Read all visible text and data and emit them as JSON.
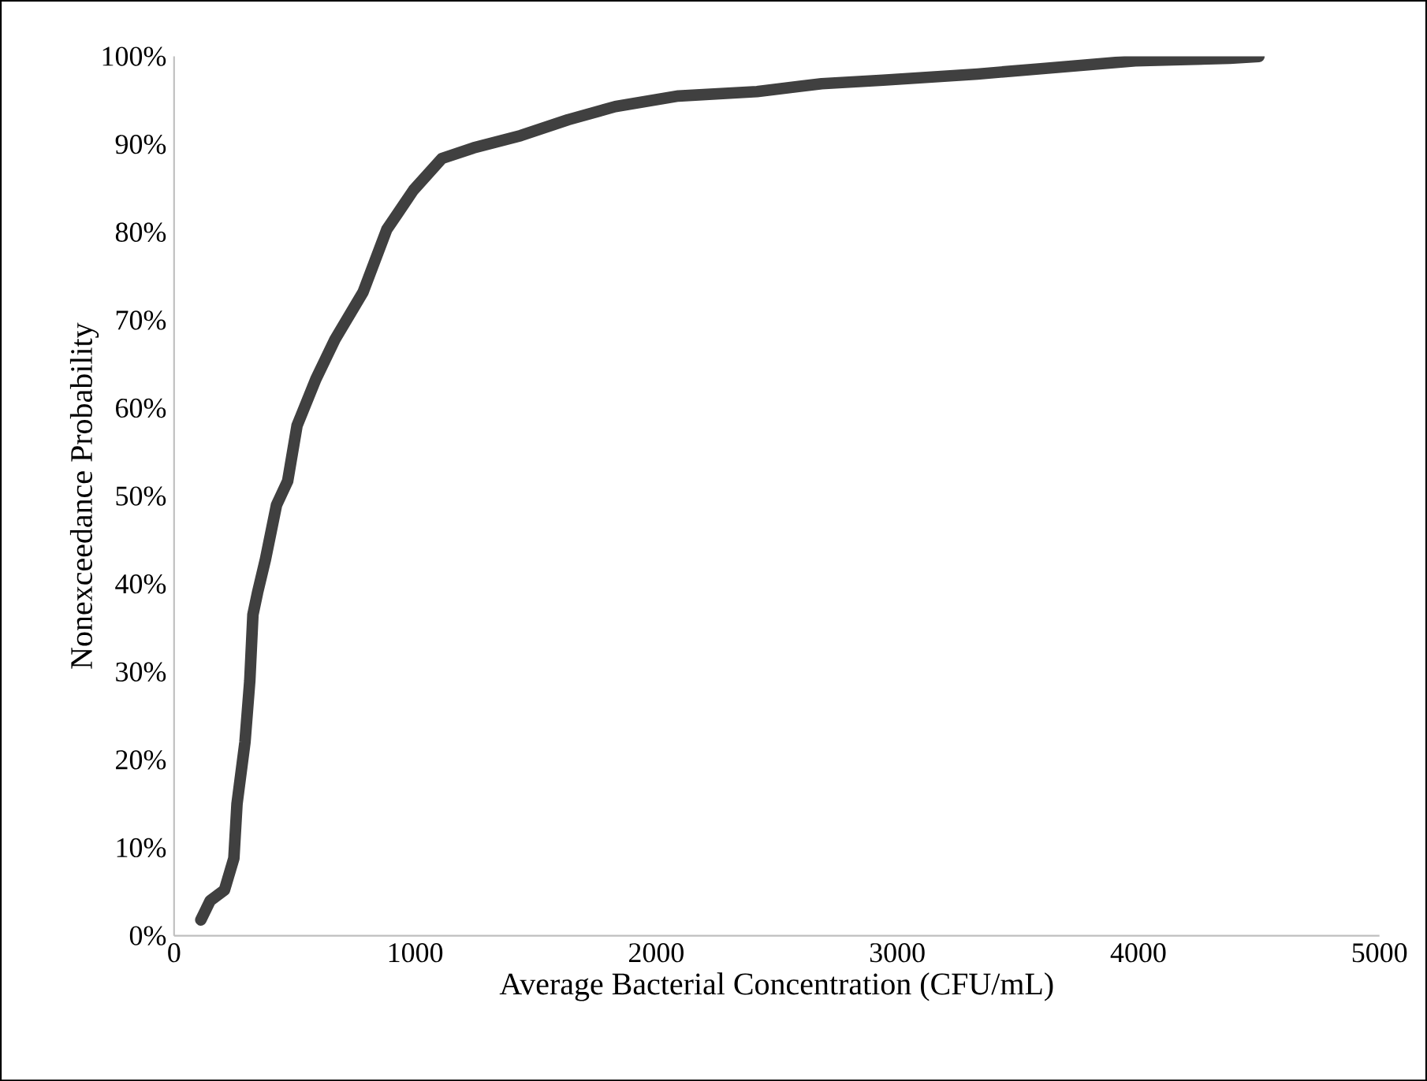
{
  "chart_data": {
    "type": "line",
    "xlabel": "Average Bacterial Concentration (CFU/mL)",
    "ylabel": "Nonexceedance Probability",
    "x": [
      111,
      150,
      209,
      248,
      261,
      294,
      314,
      327,
      346,
      379,
      425,
      471,
      510,
      588,
      667,
      784,
      882,
      993,
      1111,
      1242,
      1438,
      1634,
      1830,
      2092,
      2418,
      2686,
      2941,
      3333,
      3595,
      3987,
      4379,
      4500
    ],
    "series": [
      {
        "color": "#404040",
        "values": [
          1.8,
          4,
          5.2,
          8.8,
          15,
          22,
          29,
          36.5,
          39,
          42.8,
          49,
          51.7,
          58,
          63.3,
          67.8,
          73.2,
          80.3,
          84.8,
          88.4,
          89.6,
          91,
          92.8,
          94.3,
          95.5,
          96,
          96.9,
          97.3,
          98,
          98.6,
          99.5,
          99.8,
          100
        ]
      }
    ],
    "xlim": [
      0,
      5000
    ],
    "xticks": [
      0,
      1000,
      2000,
      3000,
      4000,
      5000
    ],
    "ylim": [
      0,
      100
    ],
    "yticks": [
      {
        "value": 0,
        "label": "0%"
      },
      {
        "value": 10,
        "label": "10%"
      },
      {
        "value": 20,
        "label": "20%"
      },
      {
        "value": 30,
        "label": "30%"
      },
      {
        "value": 40,
        "label": "40%"
      },
      {
        "value": 50,
        "label": "50%"
      },
      {
        "value": 60,
        "label": "60%"
      },
      {
        "value": 70,
        "label": "70%"
      },
      {
        "value": 80,
        "label": "80%"
      },
      {
        "value": 90,
        "label": "90%"
      },
      {
        "value": 100,
        "label": "100%"
      }
    ],
    "grid": false,
    "marker": "none",
    "line_style": "solid"
  }
}
